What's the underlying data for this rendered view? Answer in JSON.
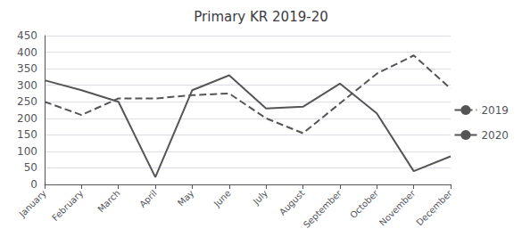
{
  "chart_data": {
    "type": "line",
    "title": "Primary KR 2019-20",
    "categories": [
      "January",
      "February",
      "March",
      "April",
      "May",
      "June",
      "July",
      "August",
      "September",
      "October",
      "November",
      "December"
    ],
    "series": [
      {
        "name": "2019",
        "color": "#555555",
        "line_style": "dashed",
        "values": [
          250,
          210,
          260,
          260,
          270,
          275,
          200,
          155,
          245,
          335,
          390,
          290
        ]
      },
      {
        "name": "2020",
        "color": "#555555",
        "line_style": "solid",
        "values": [
          315,
          285,
          250,
          22,
          285,
          330,
          230,
          235,
          305,
          215,
          40,
          85
        ]
      }
    ],
    "ylim": [
      0,
      450
    ],
    "yticks": [
      0,
      50,
      100,
      150,
      200,
      250,
      300,
      350,
      400,
      450
    ],
    "grid": true,
    "legend": "right"
  }
}
